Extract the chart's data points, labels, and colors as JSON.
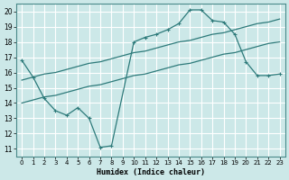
{
  "xlabel": "Humidex (Indice chaleur)",
  "background_color": "#cce8e8",
  "grid_color": "#ffffff",
  "line_color": "#2d7a7a",
  "xlim": [
    -0.5,
    23.5
  ],
  "ylim": [
    10.5,
    20.5
  ],
  "xticks": [
    0,
    1,
    2,
    3,
    4,
    5,
    6,
    7,
    8,
    9,
    10,
    11,
    12,
    13,
    14,
    15,
    16,
    17,
    18,
    19,
    20,
    21,
    22,
    23
  ],
  "yticks": [
    11,
    12,
    13,
    14,
    15,
    16,
    17,
    18,
    19,
    20
  ],
  "line1_x": [
    0,
    1,
    2,
    3,
    4,
    5,
    6,
    7,
    8,
    9,
    10,
    11,
    12,
    13,
    14,
    15,
    16,
    17,
    18,
    19,
    20,
    21,
    22,
    23
  ],
  "line1_y": [
    15.5,
    15.7,
    15.9,
    16.0,
    16.2,
    16.4,
    16.6,
    16.7,
    16.9,
    17.1,
    17.3,
    17.4,
    17.6,
    17.8,
    18.0,
    18.1,
    18.3,
    18.5,
    18.6,
    18.8,
    19.0,
    19.2,
    19.3,
    19.5
  ],
  "line2_x": [
    0,
    1,
    2,
    3,
    4,
    5,
    6,
    7,
    8,
    9,
    10,
    11,
    12,
    13,
    14,
    15,
    16,
    17,
    18,
    19,
    20,
    21,
    22,
    23
  ],
  "line2_y": [
    14.0,
    14.2,
    14.4,
    14.5,
    14.7,
    14.9,
    15.1,
    15.2,
    15.4,
    15.6,
    15.8,
    15.9,
    16.1,
    16.3,
    16.5,
    16.6,
    16.8,
    17.0,
    17.2,
    17.3,
    17.5,
    17.7,
    17.9,
    18.0
  ],
  "line3_x": [
    0,
    1,
    2,
    3,
    4,
    5,
    6,
    7,
    8,
    10,
    11,
    12,
    13,
    14,
    15,
    16,
    17,
    18,
    19,
    20,
    21,
    22,
    23
  ],
  "line3_y": [
    16.8,
    15.7,
    14.3,
    13.5,
    13.2,
    13.7,
    13.0,
    11.1,
    11.2,
    18.0,
    18.3,
    18.5,
    18.8,
    19.2,
    20.1,
    20.1,
    19.4,
    19.3,
    18.5,
    16.7,
    15.8,
    15.8,
    15.9
  ]
}
